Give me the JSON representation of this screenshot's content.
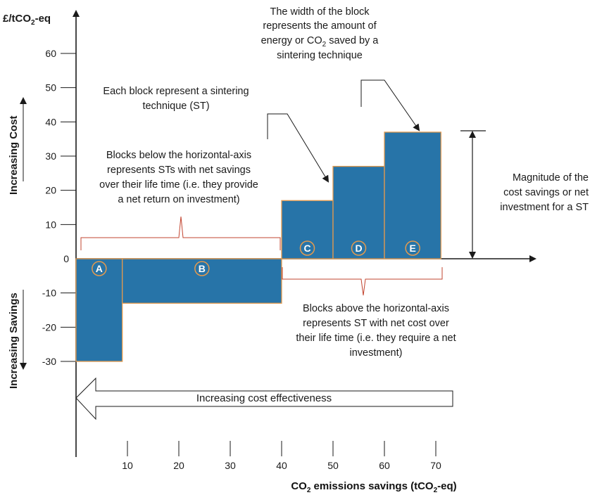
{
  "chart_data": {
    "type": "bar",
    "title": "",
    "ylabel": "£/tCO2-eq",
    "xlabel": "CO2 emissions savings (tCO2-eq)",
    "xlim": [
      0,
      70
    ],
    "ylim": [
      -30,
      60
    ],
    "x_ticks": [
      "10",
      "20",
      "30",
      "40",
      "50",
      "60",
      "70"
    ],
    "y_ticks": [
      "60",
      "50",
      "40",
      "30",
      "20",
      "10",
      "0",
      "-10",
      "-20",
      "-30"
    ],
    "blocks": [
      {
        "name": "A",
        "x_start": 0,
        "x_end": 9,
        "value": -30
      },
      {
        "name": "B",
        "x_start": 9,
        "x_end": 40,
        "value": -13
      },
      {
        "name": "C",
        "x_start": 40,
        "x_end": 50,
        "value": 17
      },
      {
        "name": "D",
        "x_start": 50,
        "x_end": 60,
        "value": 27
      },
      {
        "name": "E",
        "x_start": 60,
        "x_end": 71,
        "value": 37
      }
    ],
    "colors": {
      "block_fill": "#2774a8",
      "block_edge": "#e39a4e",
      "brace": "#c2442f"
    }
  },
  "labels": {
    "increasing_cost": "Increasing Cost",
    "increasing_savings": "Increasing Savings",
    "cost_effectiveness": "Increasing cost effectiveness",
    "axis_title_y": [
      "£/tCO",
      "2",
      "-eq"
    ],
    "axis_title_x": [
      "CO",
      "2",
      " emissions savings (tCO",
      "2",
      "-eq)"
    ]
  },
  "annotations": {
    "width_note": [
      "The width of the block",
      "represents the amount of",
      "energy or CO",
      "2",
      " saved by a",
      "sintering technique"
    ],
    "each_block": [
      "Each block represent a sintering",
      "technique (ST)"
    ],
    "below_axis": [
      "Blocks below the horizontal-axis",
      "represents STs with net savings",
      "over their life time (i.e. they provide",
      "a net return on investment)"
    ],
    "above_axis": [
      "Blocks above the horizontal-axis",
      "represents ST with net cost over",
      "their life time (i.e. they require a net",
      "investment)"
    ],
    "magnitude": [
      "Magnitude of the",
      "cost savings or net",
      "investment for a ST"
    ]
  }
}
